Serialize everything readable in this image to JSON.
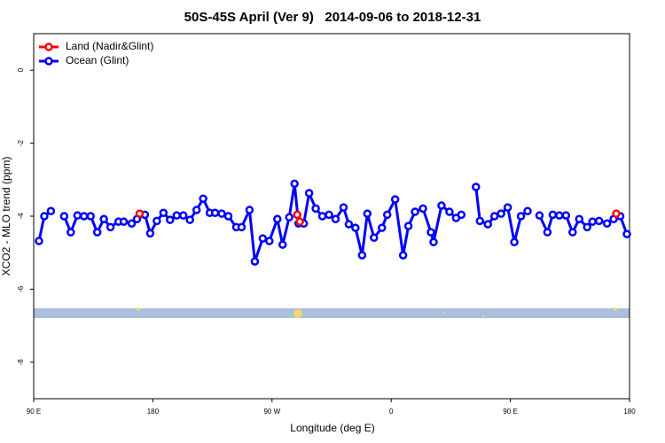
{
  "chart_data": {
    "type": "line",
    "title": "50S-45S April (Ver 9)   2014-09-06 to 2018-12-31",
    "x_label": "Longitude (deg E)",
    "y_label": "XCO2 - MLO trend (ppm)",
    "xlim": [
      90,
      540
    ],
    "xticks": [
      {
        "value": 90,
        "label": "90 E"
      },
      {
        "value": 180,
        "label": "180"
      },
      {
        "value": 270,
        "label": "90 W"
      },
      {
        "value": 360,
        "label": "0"
      },
      {
        "value": 450,
        "label": "90 E"
      },
      {
        "value": 540,
        "label": "180"
      }
    ],
    "ylim": [
      -9,
      1
    ],
    "yticks": [
      0,
      -2,
      -4,
      -6,
      -8
    ],
    "legend": "topleft",
    "series": [
      {
        "name": "Land (Nadir&Glint)",
        "color": "#ff0000",
        "x": [
          170,
          175,
          289,
          291,
          295,
          530
        ],
        "values": [
          -3.93,
          null,
          -3.96,
          -4.15,
          null,
          -3.93
        ]
      },
      {
        "name": "Ocean (Glint)",
        "color": "#0000ff",
        "x": [
          94,
          98,
          103,
          108,
          113,
          118,
          123,
          128,
          133,
          138,
          143,
          148,
          154,
          158,
          164,
          168,
          174,
          178,
          183,
          188,
          193,
          198,
          203,
          208,
          213,
          218,
          223,
          227,
          232,
          237,
          243,
          247,
          253,
          257,
          263,
          268,
          274,
          278,
          283,
          287,
          290,
          294,
          298,
          303,
          308,
          313,
          318,
          324,
          328,
          333,
          338,
          342,
          347,
          353,
          357,
          363,
          369,
          373,
          378,
          384,
          390,
          392,
          398,
          404,
          409,
          413,
          418,
          424,
          427,
          433,
          438,
          443,
          448,
          453,
          458,
          463,
          468,
          472,
          478,
          482,
          487,
          492,
          497,
          502,
          508,
          512,
          517,
          523,
          528,
          533,
          538
        ],
        "values": [
          -4.68,
          -4.0,
          -3.86,
          null,
          -4.0,
          -4.44,
          -3.98,
          -4.0,
          -4.0,
          -4.44,
          -4.08,
          -4.3,
          -4.15,
          -4.15,
          -4.2,
          -4.08,
          -3.96,
          -4.47,
          -4.13,
          -3.91,
          -4.1,
          -3.98,
          -3.98,
          -4.1,
          -3.83,
          -3.52,
          -3.91,
          -3.91,
          -3.93,
          -4.0,
          -4.3,
          -4.3,
          -3.83,
          -5.24,
          -4.61,
          -4.68,
          -4.08,
          -4.78,
          -4.03,
          -3.11,
          -4.2,
          -4.2,
          -3.37,
          -3.79,
          -4.0,
          -3.96,
          -4.08,
          -3.76,
          -4.22,
          -4.32,
          -5.07,
          -3.93,
          -4.59,
          -4.32,
          -3.96,
          -3.54,
          -5.07,
          -4.27,
          -3.88,
          -3.79,
          -4.44,
          -4.71,
          -3.71,
          -3.88,
          -4.05,
          -3.96,
          null,
          -3.2,
          -4.13,
          -4.22,
          -4.0,
          -3.93,
          -3.76,
          -4.71,
          -4.0,
          -3.86,
          null,
          -3.98,
          -4.44,
          -3.96,
          -3.98,
          -3.98,
          -4.44,
          -4.08,
          -4.3,
          -4.15,
          -4.13,
          -4.2,
          -4.08,
          -4.0,
          -4.49
        ]
      }
    ]
  }
}
